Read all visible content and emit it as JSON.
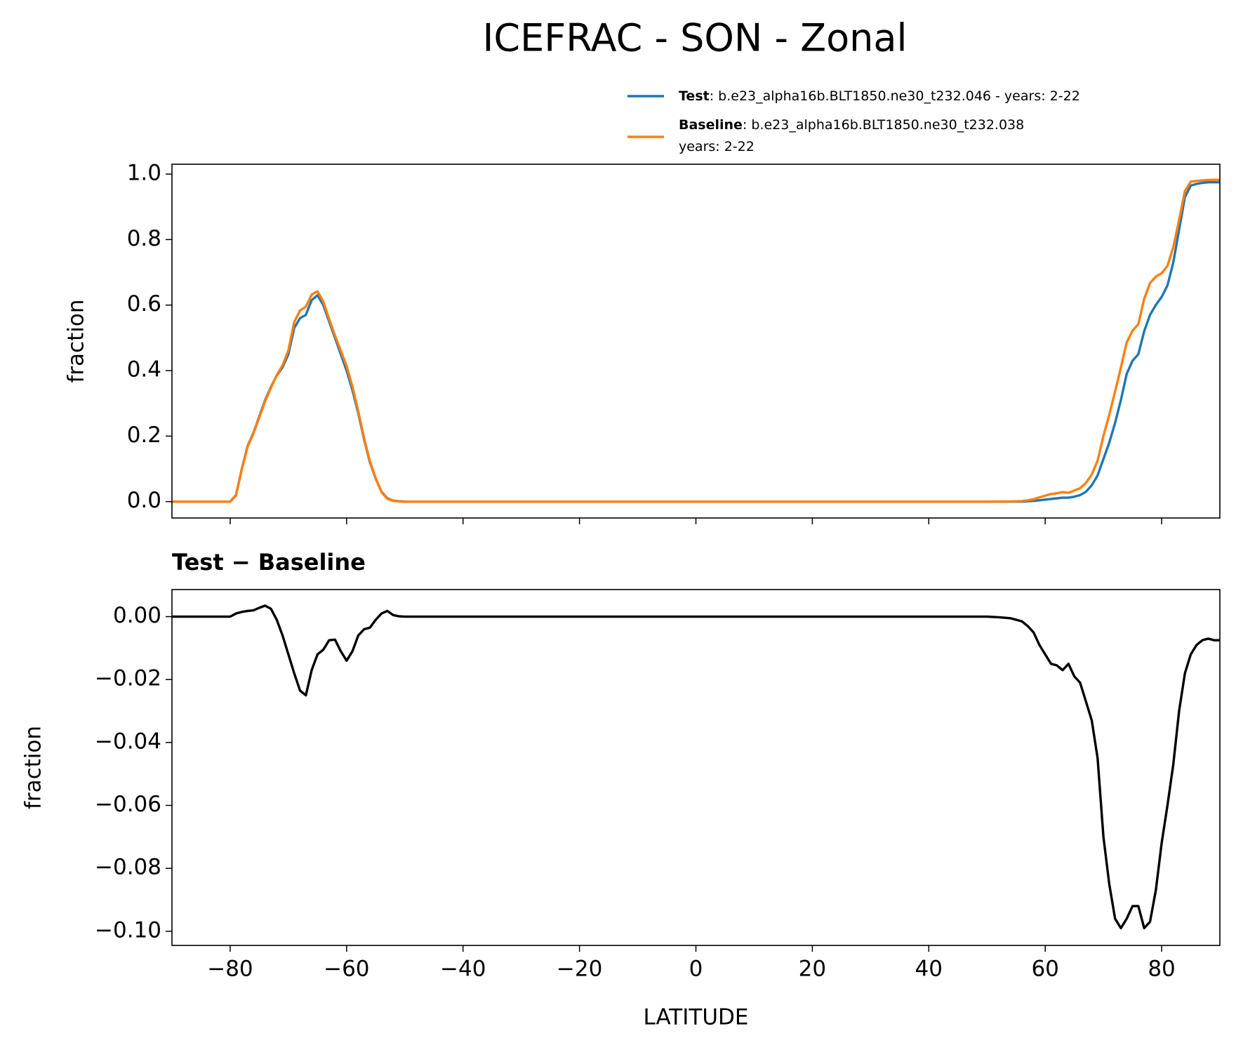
{
  "title": "ICEFRAC - SON - Zonal",
  "chart_data": [
    {
      "type": "line",
      "ylabel": "fraction",
      "legend": "upper right",
      "xlim": [
        -90,
        90
      ],
      "ylim": [
        -0.05,
        1.03
      ],
      "xticks": [
        -80,
        -60,
        -40,
        -20,
        0,
        20,
        40,
        60,
        80
      ],
      "yticks": [
        {
          "value": 0,
          "label": "0.0"
        },
        0.2,
        0.4,
        0.6,
        0.8,
        {
          "value": 1,
          "label": "1.0"
        }
      ],
      "x": [
        -90,
        -80,
        -79,
        -78,
        -77,
        -76,
        -75,
        -74,
        -73,
        -72,
        -71,
        -70,
        -69,
        -68,
        -67,
        -66,
        -65,
        -64,
        -63,
        -62,
        -61,
        -60,
        -59,
        -58,
        -57,
        -56,
        -55,
        -54,
        -53,
        -52,
        -51,
        -50,
        50,
        52,
        54,
        55,
        56,
        57,
        58,
        59,
        60,
        61,
        62,
        63,
        64,
        65,
        66,
        67,
        68,
        69,
        70,
        71,
        72,
        73,
        74,
        75,
        76,
        77,
        78,
        79,
        80,
        81,
        82,
        83,
        84,
        85,
        86,
        87,
        88,
        89,
        90
      ],
      "series": [
        {
          "name": "Test",
          "description": [
            ": b.e23_alpha16b.BLT1850.ne30_t232.046 - years: 2-22"
          ],
          "color": "#1f77b4",
          "values": [
            0,
            0,
            0.02,
            0.1,
            0.17,
            0.21,
            0.26,
            0.31,
            0.35,
            0.385,
            0.41,
            0.45,
            0.53,
            0.56,
            0.57,
            0.615,
            0.63,
            0.6,
            0.55,
            0.5,
            0.45,
            0.4,
            0.34,
            0.27,
            0.19,
            0.12,
            0.07,
            0.03,
            0.01,
            0.003,
            0.001,
            0,
            0,
            0,
            0,
            0,
            0,
            0.001,
            0.002,
            0.004,
            0.006,
            0.008,
            0.01,
            0.012,
            0.012,
            0.015,
            0.02,
            0.03,
            0.05,
            0.08,
            0.13,
            0.18,
            0.24,
            0.31,
            0.39,
            0.43,
            0.45,
            0.52,
            0.57,
            0.6,
            0.625,
            0.66,
            0.73,
            0.83,
            0.93,
            0.965,
            0.97,
            0.973,
            0.975,
            0.975,
            0.975
          ]
        },
        {
          "name": "Baseline",
          "description": [
            ": b.e23_alpha16b.BLT1850.ne30_t232.038",
            "years: 2-22"
          ],
          "color": "#ff7f0e",
          "values": [
            0,
            0,
            0.019,
            0.0985,
            0.1682,
            0.208,
            0.2572,
            0.3065,
            0.3475,
            0.386,
            0.416,
            0.462,
            0.548,
            0.5835,
            0.595,
            0.632,
            0.642,
            0.6105,
            0.5575,
            0.5073,
            0.461,
            0.414,
            0.351,
            0.276,
            0.194,
            0.1235,
            0.071,
            0.029,
            0.0082,
            0.0025,
            0.0009,
            0,
            0,
            0.0002,
            0.0005,
            0.001,
            0.0015,
            0.004,
            0.007,
            0.013,
            0.018,
            0.023,
            0.0255,
            0.029,
            0.027,
            0.034,
            0.041,
            0.057,
            0.083,
            0.125,
            0.2,
            0.265,
            0.336,
            0.409,
            0.486,
            0.522,
            0.542,
            0.619,
            0.667,
            0.687,
            0.697,
            0.72,
            0.777,
            0.86,
            0.948,
            0.977,
            0.979,
            0.9805,
            0.982,
            0.9825,
            0.9825
          ]
        }
      ]
    },
    {
      "type": "line",
      "title": "Test − Baseline",
      "xlabel": "LATITUDE",
      "ylabel": "fraction",
      "xlim": [
        -90,
        90
      ],
      "ylim": [
        -0.1045,
        0.0086
      ],
      "xticks": [
        {
          "value": -80,
          "label": "−80"
        },
        {
          "value": -60,
          "label": "−60"
        },
        {
          "value": -40,
          "label": "−40"
        },
        {
          "value": -20,
          "label": "−20"
        },
        0,
        20,
        40,
        60,
        80
      ],
      "yticks": [
        {
          "value": 0,
          "label": "0.00"
        },
        {
          "value": -0.02,
          "label": "−0.02"
        },
        {
          "value": -0.04,
          "label": "−0.04"
        },
        {
          "value": -0.06,
          "label": "−0.06"
        },
        {
          "value": -0.08,
          "label": "−0.08"
        },
        {
          "value": -0.1,
          "label": "−0.10"
        }
      ],
      "x": [
        -90,
        -80,
        -79,
        -78,
        -77,
        -76,
        -75,
        -74,
        -73,
        -72,
        -71,
        -70,
        -69,
        -68,
        -67,
        -66,
        -65,
        -64,
        -63,
        -62,
        -61,
        -60,
        -59,
        -58,
        -57,
        -56,
        -55,
        -54,
        -53,
        -52,
        -51,
        -50,
        50,
        52,
        54,
        55,
        56,
        57,
        58,
        59,
        60,
        61,
        62,
        63,
        64,
        65,
        66,
        67,
        68,
        69,
        70,
        71,
        72,
        73,
        74,
        75,
        76,
        77,
        78,
        79,
        80,
        81,
        82,
        83,
        84,
        85,
        86,
        87,
        88,
        89,
        90
      ],
      "series": [
        {
          "color": "#000000",
          "values": [
            0,
            0,
            0.001,
            0.0015,
            0.0018,
            0.002,
            0.0028,
            0.0035,
            0.0025,
            -0.001,
            -0.006,
            -0.012,
            -0.018,
            -0.0235,
            -0.025,
            -0.017,
            -0.012,
            -0.0105,
            -0.0075,
            -0.0073,
            -0.011,
            -0.014,
            -0.011,
            -0.006,
            -0.004,
            -0.0035,
            -0.001,
            0.001,
            0.0018,
            0.0005,
            0.0001,
            0,
            0,
            -0.0002,
            -0.0005,
            -0.001,
            -0.0015,
            -0.003,
            -0.005,
            -0.009,
            -0.012,
            -0.015,
            -0.0155,
            -0.017,
            -0.015,
            -0.019,
            -0.021,
            -0.027,
            -0.033,
            -0.045,
            -0.07,
            -0.085,
            -0.096,
            -0.099,
            -0.096,
            -0.092,
            -0.092,
            -0.099,
            -0.097,
            -0.087,
            -0.072,
            -0.06,
            -0.047,
            -0.03,
            -0.018,
            -0.012,
            -0.009,
            -0.0075,
            -0.007,
            -0.0075,
            -0.0075
          ]
        }
      ]
    }
  ]
}
